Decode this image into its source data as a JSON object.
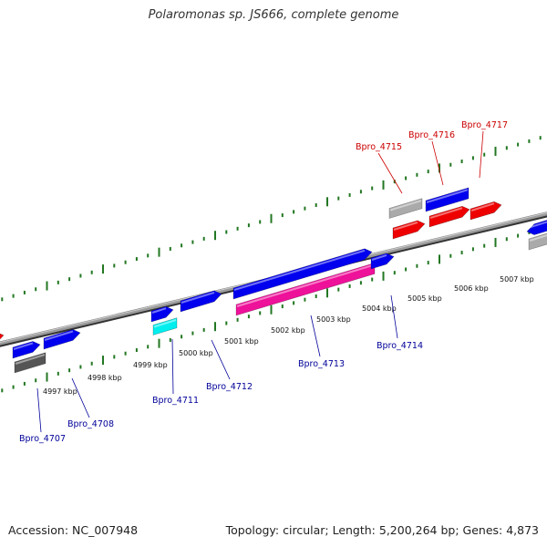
{
  "title": "Polaromonas sp. JS666, complete genome",
  "footer": {
    "accession": "Accession: NC_007948",
    "summary": "Topology: circular; Length: 5,200,264 bp; Genes: 4,873"
  },
  "colors": {
    "blue": "#0000ee",
    "red": "#ee0000",
    "pink": "#ee1199",
    "gray": "#aaaaaa",
    "darkgray": "#555555",
    "cyan": "#00eeee",
    "tick": "#227722",
    "label_blue": "#000099",
    "label_red": "#cc0000"
  },
  "kbp_labels": [
    {
      "text": "4997 kbp"
    },
    {
      "text": "4998 kbp"
    },
    {
      "text": "4999 kbp"
    },
    {
      "text": "5000 kbp"
    },
    {
      "text": "5001 kbp"
    },
    {
      "text": "5002 kbp"
    },
    {
      "text": "5003 kbp"
    },
    {
      "text": "5004 kbp"
    },
    {
      "text": "5005 kbp"
    },
    {
      "text": "5006 kbp"
    },
    {
      "text": "5007 kbp"
    }
  ],
  "gene_labels": [
    {
      "text": "Bpro_4707",
      "color": "blue"
    },
    {
      "text": "Bpro_4708",
      "color": "blue"
    },
    {
      "text": "Bpro_4711",
      "color": "blue"
    },
    {
      "text": "Bpro_4712",
      "color": "blue"
    },
    {
      "text": "Bpro_4713",
      "color": "blue"
    },
    {
      "text": "Bpro_4714",
      "color": "blue"
    },
    {
      "text": "Bpro_4715",
      "color": "red"
    },
    {
      "text": "Bpro_4716",
      "color": "red"
    },
    {
      "text": "Bpro_4717",
      "color": "red"
    }
  ]
}
